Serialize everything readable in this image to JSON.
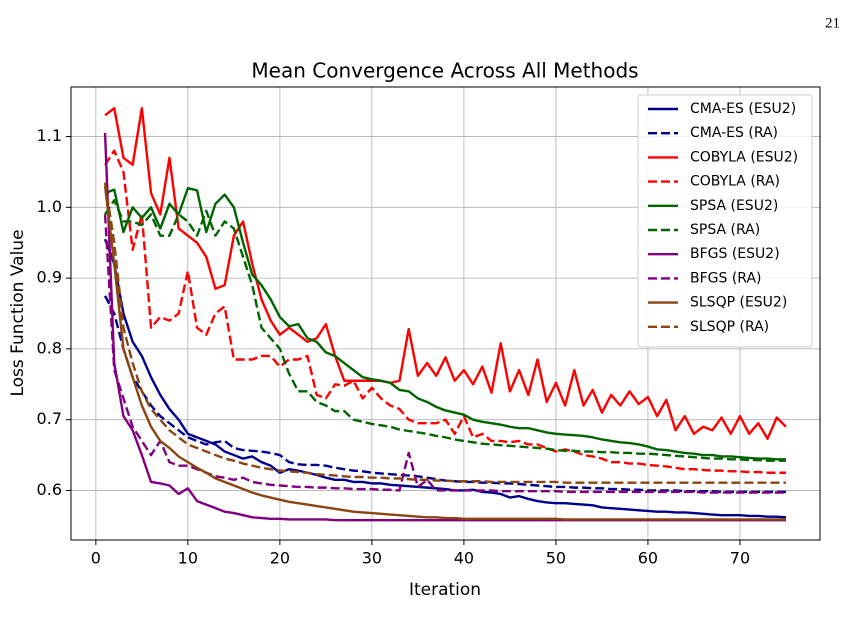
{
  "page_number": "21",
  "chart_data": {
    "type": "line",
    "title": "Mean Convergence Across All Methods",
    "x_label": "Iteration",
    "y_label": "Loss Function Value",
    "xlim": [
      -2.7,
      78.7
    ],
    "ylim": [
      0.53,
      1.17
    ],
    "xticks": [
      0,
      10,
      20,
      30,
      40,
      50,
      60,
      70
    ],
    "yticks": [
      0.6,
      0.7,
      0.8,
      0.9,
      {
        "value": 1,
        "label": "1.0"
      },
      1.1
    ],
    "grid": true,
    "legend": "upper right",
    "x": [
      1,
      2,
      3,
      4,
      5,
      6,
      7,
      8,
      9,
      10,
      11,
      12,
      13,
      14,
      15,
      16,
      17,
      18,
      19,
      20,
      21,
      22,
      23,
      24,
      25,
      26,
      27,
      28,
      29,
      30,
      31,
      32,
      33,
      34,
      35,
      36,
      37,
      38,
      39,
      40,
      41,
      42,
      43,
      44,
      45,
      46,
      47,
      48,
      49,
      50,
      51,
      52,
      53,
      54,
      55,
      56,
      57,
      58,
      59,
      60,
      61,
      62,
      63,
      64,
      65,
      66,
      67,
      68,
      69,
      70,
      71,
      72,
      73,
      74,
      75
    ],
    "series": [
      {
        "name": "CMA-ES (ESU2)",
        "color": "#00008b",
        "linestyle": "solid",
        "values": [
          0.955,
          0.92,
          0.85,
          0.81,
          0.79,
          0.76,
          0.735,
          0.715,
          0.7,
          0.68,
          0.675,
          0.67,
          0.665,
          0.655,
          0.65,
          0.645,
          0.648,
          0.64,
          0.635,
          0.625,
          0.63,
          0.628,
          0.625,
          0.622,
          0.618,
          0.615,
          0.615,
          0.612,
          0.612,
          0.61,
          0.61,
          0.608,
          0.607,
          0.606,
          0.605,
          0.604,
          0.603,
          0.602,
          0.6,
          0.6,
          0.601,
          0.598,
          0.597,
          0.595,
          0.59,
          0.592,
          0.588,
          0.585,
          0.583,
          0.582,
          0.582,
          0.581,
          0.58,
          0.579,
          0.576,
          0.575,
          0.574,
          0.573,
          0.572,
          0.571,
          0.57,
          0.57,
          0.569,
          0.569,
          0.568,
          0.567,
          0.566,
          0.565,
          0.565,
          0.565,
          0.564,
          0.564,
          0.563,
          0.563,
          0.562
        ]
      },
      {
        "name": "CMA-ES (RA)",
        "color": "#00008b",
        "linestyle": "dashed",
        "values": [
          0.875,
          0.85,
          0.8,
          0.76,
          0.74,
          0.72,
          0.705,
          0.695,
          0.685,
          0.675,
          0.67,
          0.665,
          0.668,
          0.67,
          0.66,
          0.657,
          0.656,
          0.655,
          0.653,
          0.65,
          0.64,
          0.637,
          0.636,
          0.636,
          0.635,
          0.632,
          0.63,
          0.628,
          0.627,
          0.625,
          0.624,
          0.623,
          0.622,
          0.621,
          0.62,
          0.618,
          0.616,
          0.614,
          0.613,
          0.612,
          0.612,
          0.611,
          0.611,
          0.61,
          0.61,
          0.609,
          0.608,
          0.607,
          0.606,
          0.605,
          0.605,
          0.604,
          0.604,
          0.603,
          0.603,
          0.602,
          0.602,
          0.601,
          0.601,
          0.6,
          0.6,
          0.6,
          0.6,
          0.599,
          0.599,
          0.599,
          0.599,
          0.598,
          0.598,
          0.598,
          0.598,
          0.598,
          0.598,
          0.598,
          0.598
        ]
      },
      {
        "name": "COBYLA (ESU2)",
        "color": "#ff0000",
        "linestyle": "solid",
        "values": [
          1.13,
          1.14,
          1.07,
          1.06,
          1.14,
          1.02,
          0.99,
          1.07,
          0.97,
          0.96,
          0.95,
          0.93,
          0.885,
          0.89,
          0.96,
          0.98,
          0.92,
          0.87,
          0.84,
          0.82,
          0.83,
          0.82,
          0.81,
          0.815,
          0.835,
          0.79,
          0.755,
          0.755,
          0.755,
          0.755,
          0.755,
          0.752,
          0.755,
          0.828,
          0.762,
          0.78,
          0.762,
          0.788,
          0.755,
          0.77,
          0.75,
          0.775,
          0.738,
          0.808,
          0.74,
          0.77,
          0.735,
          0.785,
          0.725,
          0.752,
          0.72,
          0.77,
          0.72,
          0.742,
          0.71,
          0.735,
          0.72,
          0.74,
          0.722,
          0.732,
          0.705,
          0.728,
          0.685,
          0.705,
          0.68,
          0.69,
          0.685,
          0.703,
          0.68,
          0.705,
          0.68,
          0.695,
          0.673,
          0.703,
          0.69
        ]
      },
      {
        "name": "COBYLA (RA)",
        "color": "#ff0000",
        "linestyle": "dashed",
        "values": [
          1.06,
          1.08,
          1.05,
          0.94,
          0.99,
          0.83,
          0.845,
          0.84,
          0.85,
          0.91,
          0.83,
          0.82,
          0.85,
          0.86,
          0.785,
          0.785,
          0.785,
          0.79,
          0.79,
          0.775,
          0.785,
          0.785,
          0.79,
          0.735,
          0.73,
          0.75,
          0.748,
          0.755,
          0.73,
          0.745,
          0.73,
          0.72,
          0.715,
          0.7,
          0.695,
          0.695,
          0.695,
          0.7,
          0.68,
          0.705,
          0.675,
          0.68,
          0.67,
          0.67,
          0.668,
          0.67,
          0.665,
          0.665,
          0.66,
          0.655,
          0.658,
          0.655,
          0.65,
          0.648,
          0.645,
          0.64,
          0.64,
          0.638,
          0.638,
          0.636,
          0.635,
          0.634,
          0.632,
          0.63,
          0.63,
          0.629,
          0.628,
          0.628,
          0.627,
          0.627,
          0.626,
          0.626,
          0.625,
          0.625,
          0.625
        ]
      },
      {
        "name": "SPSA (ESU2)",
        "color": "#006400",
        "linestyle": "solid",
        "values": [
          1.02,
          1.025,
          0.965,
          1.0,
          0.985,
          1.0,
          0.97,
          1.005,
          0.99,
          1.027,
          1.024,
          0.965,
          1.005,
          1.018,
          1.0,
          0.95,
          0.905,
          0.89,
          0.87,
          0.845,
          0.832,
          0.835,
          0.815,
          0.81,
          0.795,
          0.79,
          0.78,
          0.77,
          0.76,
          0.757,
          0.755,
          0.752,
          0.742,
          0.74,
          0.73,
          0.725,
          0.718,
          0.713,
          0.71,
          0.707,
          0.7,
          0.697,
          0.695,
          0.693,
          0.69,
          0.688,
          0.688,
          0.685,
          0.682,
          0.68,
          0.679,
          0.678,
          0.677,
          0.675,
          0.672,
          0.67,
          0.668,
          0.667,
          0.665,
          0.662,
          0.658,
          0.657,
          0.655,
          0.653,
          0.652,
          0.65,
          0.65,
          0.648,
          0.648,
          0.647,
          0.646,
          0.645,
          0.645,
          0.644,
          0.644
        ]
      },
      {
        "name": "SPSA (RA)",
        "color": "#006400",
        "linestyle": "dashed",
        "values": [
          0.99,
          1.01,
          0.98,
          0.98,
          0.975,
          0.99,
          0.96,
          0.96,
          0.99,
          0.98,
          0.96,
          0.995,
          0.96,
          0.98,
          0.97,
          0.93,
          0.89,
          0.83,
          0.815,
          0.8,
          0.765,
          0.74,
          0.74,
          0.725,
          0.72,
          0.712,
          0.712,
          0.7,
          0.697,
          0.694,
          0.692,
          0.69,
          0.686,
          0.684,
          0.682,
          0.68,
          0.677,
          0.675,
          0.672,
          0.67,
          0.668,
          0.666,
          0.665,
          0.664,
          0.663,
          0.662,
          0.661,
          0.66,
          0.659,
          0.657,
          0.656,
          0.656,
          0.655,
          0.655,
          0.654,
          0.654,
          0.653,
          0.653,
          0.652,
          0.652,
          0.651,
          0.65,
          0.649,
          0.648,
          0.647,
          0.646,
          0.645,
          0.645,
          0.644,
          0.644,
          0.643,
          0.643,
          0.642,
          0.642,
          0.642
        ]
      },
      {
        "name": "BFGS (ESU2)",
        "color": "#800080",
        "linestyle": "solid",
        "values": [
          1.105,
          0.78,
          0.705,
          0.685,
          0.65,
          0.612,
          0.61,
          0.607,
          0.595,
          0.603,
          0.585,
          0.58,
          0.575,
          0.57,
          0.568,
          0.565,
          0.562,
          0.561,
          0.56,
          0.56,
          0.559,
          0.559,
          0.559,
          0.559,
          0.559,
          0.558,
          0.558,
          0.558,
          0.558,
          0.558,
          0.558,
          0.558,
          0.558,
          0.558,
          0.558,
          0.558,
          0.558,
          0.558,
          0.558,
          0.558,
          0.558,
          0.558,
          0.558,
          0.558,
          0.558,
          0.558,
          0.558,
          0.558,
          0.558,
          0.558,
          0.558,
          0.558,
          0.558,
          0.558,
          0.558,
          0.558,
          0.558,
          0.558,
          0.558,
          0.558,
          0.558,
          0.558,
          0.558,
          0.558,
          0.558,
          0.558,
          0.558,
          0.558,
          0.558,
          0.558,
          0.558,
          0.558,
          0.558,
          0.558,
          0.558
        ]
      },
      {
        "name": "BFGS (RA)",
        "color": "#800080",
        "linestyle": "dashed",
        "values": [
          0.99,
          0.77,
          0.73,
          0.69,
          0.67,
          0.65,
          0.67,
          0.64,
          0.635,
          0.635,
          0.63,
          0.625,
          0.62,
          0.618,
          0.615,
          0.618,
          0.612,
          0.61,
          0.608,
          0.607,
          0.606,
          0.605,
          0.605,
          0.604,
          0.604,
          0.603,
          0.603,
          0.602,
          0.602,
          0.602,
          0.601,
          0.601,
          0.6,
          0.653,
          0.605,
          0.615,
          0.6,
          0.6,
          0.6,
          0.6,
          0.6,
          0.6,
          0.6,
          0.599,
          0.599,
          0.599,
          0.599,
          0.599,
          0.599,
          0.599,
          0.598,
          0.598,
          0.598,
          0.598,
          0.598,
          0.598,
          0.598,
          0.598,
          0.598,
          0.598,
          0.598,
          0.598,
          0.598,
          0.598,
          0.598,
          0.597,
          0.597,
          0.597,
          0.597,
          0.597,
          0.597,
          0.597,
          0.597,
          0.597,
          0.597
        ]
      },
      {
        "name": "SLSQP (ESU2)",
        "color": "#8b4513",
        "linestyle": "solid",
        "values": [
          1.03,
          0.92,
          0.8,
          0.76,
          0.72,
          0.69,
          0.67,
          0.66,
          0.648,
          0.64,
          0.632,
          0.625,
          0.617,
          0.612,
          0.607,
          0.602,
          0.597,
          0.593,
          0.59,
          0.587,
          0.584,
          0.582,
          0.58,
          0.578,
          0.576,
          0.574,
          0.572,
          0.57,
          0.569,
          0.568,
          0.567,
          0.566,
          0.565,
          0.564,
          0.563,
          0.562,
          0.562,
          0.561,
          0.561,
          0.56,
          0.56,
          0.56,
          0.56,
          0.56,
          0.56,
          0.56,
          0.56,
          0.56,
          0.56,
          0.56,
          0.559,
          0.559,
          0.559,
          0.559,
          0.559,
          0.559,
          0.559,
          0.559,
          0.559,
          0.559,
          0.559,
          0.559,
          0.559,
          0.559,
          0.559,
          0.559,
          0.559,
          0.559,
          0.559,
          0.559,
          0.559,
          0.559,
          0.559,
          0.559,
          0.559
        ]
      },
      {
        "name": "SLSQP (RA)",
        "color": "#8b4513",
        "linestyle": "dashed",
        "values": [
          1.035,
          0.95,
          0.83,
          0.78,
          0.74,
          0.715,
          0.7,
          0.685,
          0.675,
          0.665,
          0.66,
          0.655,
          0.65,
          0.645,
          0.642,
          0.638,
          0.635,
          0.632,
          0.63,
          0.628,
          0.627,
          0.626,
          0.625,
          0.623,
          0.622,
          0.621,
          0.62,
          0.619,
          0.619,
          0.618,
          0.618,
          0.617,
          0.617,
          0.616,
          0.615,
          0.615,
          0.614,
          0.614,
          0.613,
          0.613,
          0.613,
          0.613,
          0.612,
          0.612,
          0.612,
          0.612,
          0.612,
          0.612,
          0.612,
          0.612,
          0.611,
          0.611,
          0.611,
          0.611,
          0.611,
          0.611,
          0.611,
          0.611,
          0.611,
          0.611,
          0.611,
          0.611,
          0.611,
          0.611,
          0.611,
          0.611,
          0.611,
          0.611,
          0.611,
          0.611,
          0.611,
          0.611,
          0.611,
          0.611,
          0.611
        ]
      }
    ]
  }
}
